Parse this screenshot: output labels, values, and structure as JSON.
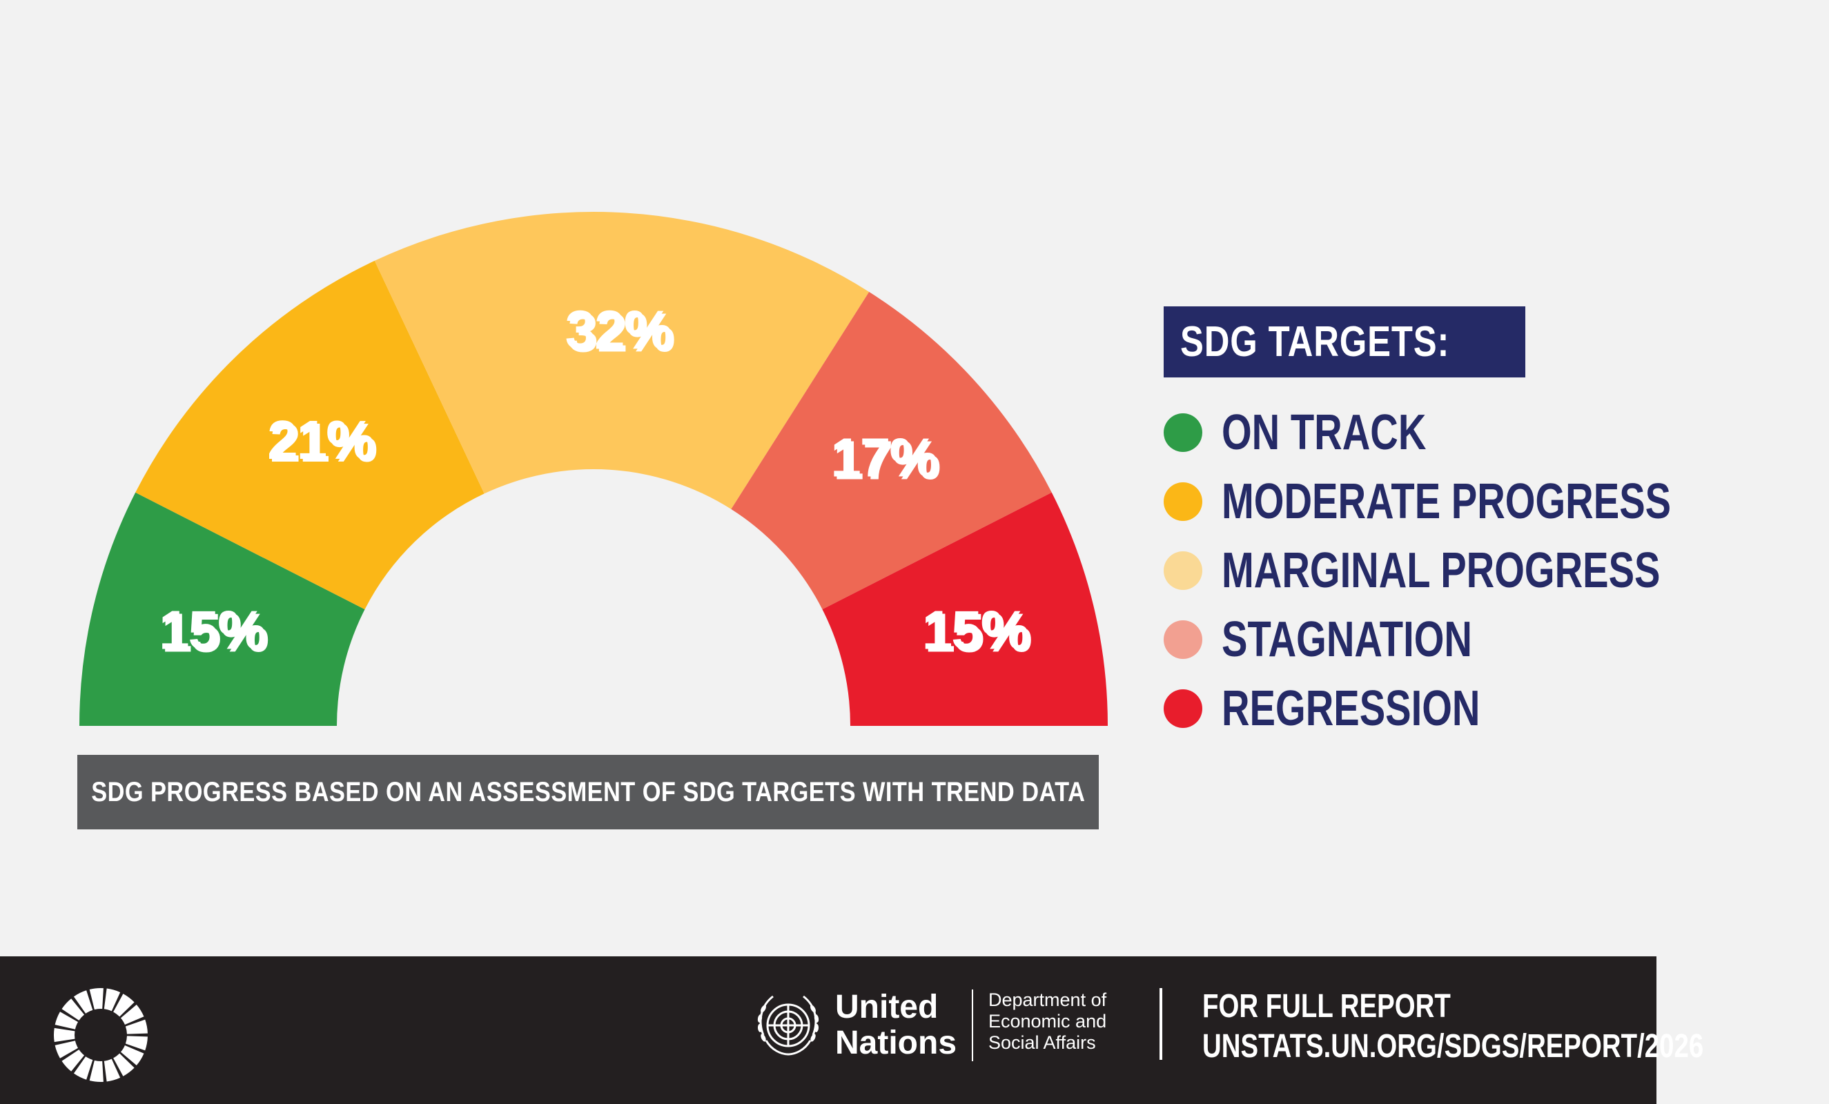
{
  "chart_data": {
    "type": "pie",
    "shape": "semicircle-donut",
    "categories": [
      "ON TRACK",
      "MODERATE PROGRESS",
      "MARGINAL PROGRESS",
      "STAGNATION",
      "REGRESSION"
    ],
    "values": [
      15,
      21,
      32,
      17,
      15
    ],
    "labels": [
      "15%",
      "21%",
      "32%",
      "17%",
      "15%"
    ],
    "colors": [
      "#2e9c47",
      "#fbb717",
      "#fec75b",
      "#ee6854",
      "#e81d2c"
    ],
    "legend_placement": "right"
  },
  "caption": "SDG PROGRESS BASED ON AN ASSESSMENT OF SDG TARGETS WITH TREND DATA",
  "legend": {
    "title": "SDG TARGETS:",
    "items": [
      {
        "label": "ON TRACK",
        "color": "#2e9c47"
      },
      {
        "label": "MODERATE PROGRESS",
        "color": "#fbb717"
      },
      {
        "label": "MARGINAL PROGRESS",
        "color": "#fad995"
      },
      {
        "label": "STAGNATION",
        "color": "#f2a091"
      },
      {
        "label": "REGRESSION",
        "color": "#e81d2c"
      }
    ]
  },
  "footer": {
    "un_line1": "United",
    "un_line2": "Nations",
    "desa_line1": "Department of",
    "desa_line2": "Economic and",
    "desa_line3": "Social Affairs",
    "report_line1": "FOR FULL REPORT",
    "report_line2": "UNSTATS.UN.ORG/SDGS/REPORT/2026"
  },
  "colors": {
    "background": "#f2f2f2",
    "navy": "#252a66",
    "caption_bg": "#58595b",
    "footer_bg": "#231f20"
  }
}
